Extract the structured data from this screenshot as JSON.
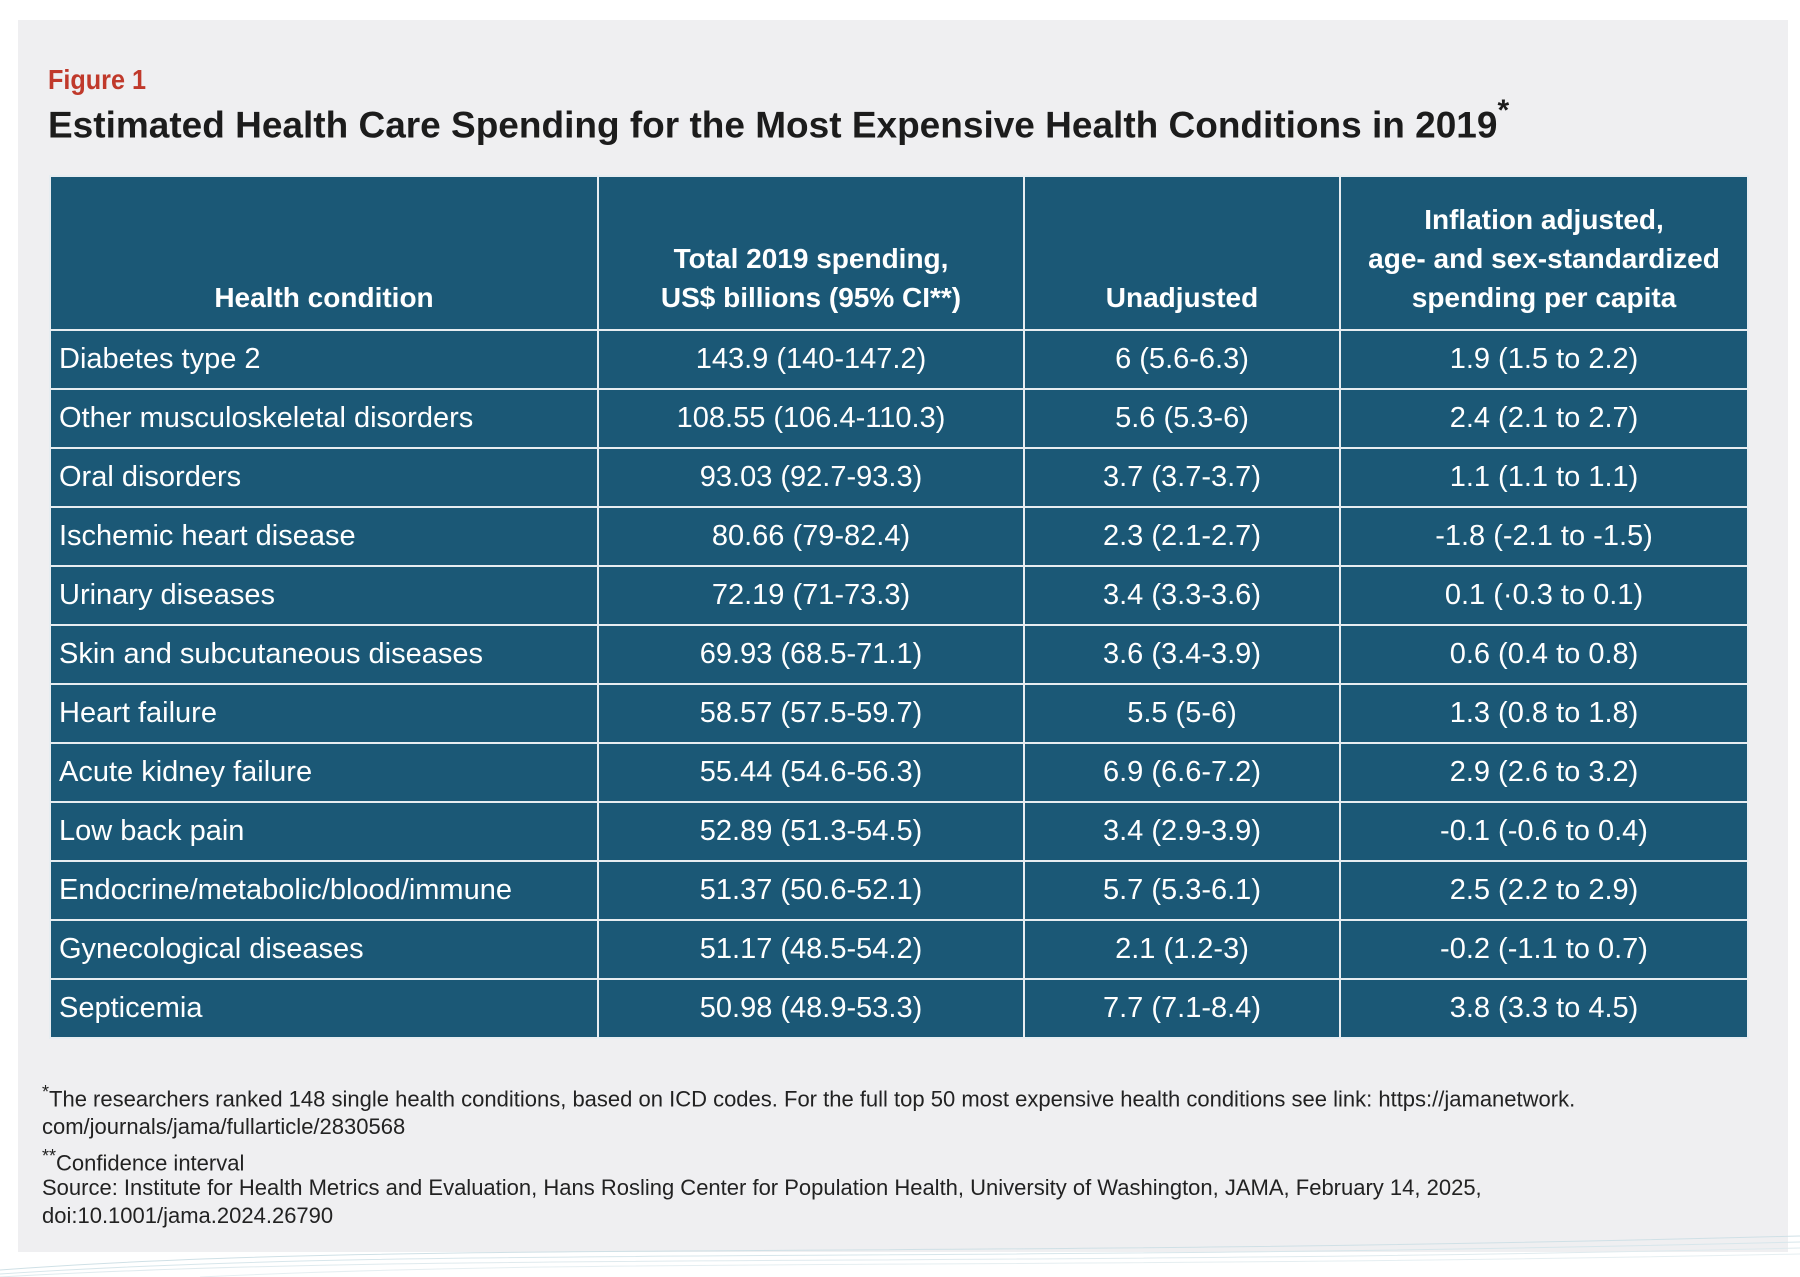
{
  "figure_label": "Figure 1",
  "title": "Estimated Health Care Spending for the Most Expensive Health Conditions in 2019",
  "title_mark": "*",
  "table": {
    "headers": [
      [
        "Health condition"
      ],
      [
        "Total 2019 spending,",
        "US$ billions (95% CI**)"
      ],
      [
        "Unadjusted"
      ],
      [
        "Inflation adjusted,",
        "age- and sex-standardized",
        "spending per capita"
      ]
    ],
    "rows": [
      [
        "Diabetes type 2",
        "143.9 (140-147.2)",
        "6 (5.6-6.3)",
        "1.9 (1.5 to 2.2)"
      ],
      [
        "Other musculoskeletal disorders",
        "108.55 (106.4-110.3)",
        "5.6 (5.3-6)",
        "2.4 (2.1 to 2.7)"
      ],
      [
        "Oral disorders",
        "93.03 (92.7-93.3)",
        "3.7 (3.7-3.7)",
        "1.1 (1.1 to 1.1)"
      ],
      [
        "Ischemic heart disease",
        "80.66 (79-82.4)",
        "2.3 (2.1-2.7)",
        "-1.8 (-2.1 to -1.5)"
      ],
      [
        "Urinary diseases",
        "72.19 (71-73.3)",
        "3.4 (3.3-3.6)",
        "0.1 (·0.3 to 0.1)"
      ],
      [
        "Skin and subcutaneous diseases",
        "69.93 (68.5-71.1)",
        "3.6 (3.4-3.9)",
        "0.6 (0.4 to 0.8)"
      ],
      [
        "Heart failure",
        "58.57 (57.5-59.7)",
        "5.5 (5-6)",
        "1.3 (0.8 to 1.8)"
      ],
      [
        "Acute kidney failure",
        "55.44 (54.6-56.3)",
        "6.9 (6.6-7.2)",
        "2.9 (2.6 to 3.2)"
      ],
      [
        "Low back pain",
        "52.89 (51.3-54.5)",
        "3.4 (2.9-3.9)",
        "-0.1 (-0.6 to 0.4)"
      ],
      [
        "Endocrine/metabolic/blood/immune",
        "51.37 (50.6-52.1)",
        "5.7 (5.3-6.1)",
        "2.5 (2.2 to 2.9)"
      ],
      [
        "Gynecological diseases",
        "51.17 (48.5-54.2)",
        "2.1 (1.2-3)",
        "-0.2 (-1.1 to 0.7)"
      ],
      [
        "Septicemia",
        "50.98 (48.9-53.3)",
        "7.7 (7.1-8.4)",
        "3.8 (3.3 to 4.5)"
      ]
    ]
  },
  "footnotes": {
    "note1_mark": "*",
    "note1_line1": "The researchers ranked 148 single health conditions, based on ICD codes. For the full top 50 most expensive health conditions see link: https://jamanetwork.",
    "note1_line2": "com/journals/jama/fullarticle/2830568",
    "note2_mark": "**",
    "note2_text": "Confidence interval",
    "source_line1": "Source: Institute for Health Metrics and Evaluation, Hans Rosling Center for Population Health, University of Washington, JAMA, February 14, 2025,",
    "source_line2": "doi:10.1001/jama.2024.26790"
  },
  "colors": {
    "table_fill": "#1b5876",
    "figure_label": "#c0392b",
    "card_background": "#efeff1"
  }
}
